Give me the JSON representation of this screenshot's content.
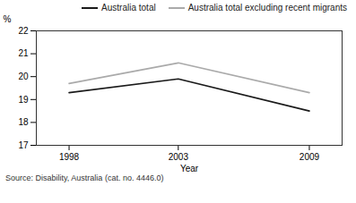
{
  "chart_data": {
    "type": "line",
    "x": [
      1998,
      2003,
      2009
    ],
    "series": [
      {
        "name": "Australia total",
        "color": "#1a1a1a",
        "values": [
          19.3,
          19.9,
          18.5
        ]
      },
      {
        "name": "Australia total excluding recent migrants",
        "color": "#aaaaaa",
        "values": [
          19.7,
          20.6,
          19.3
        ]
      }
    ],
    "xlabel": "Year",
    "ylabel": "%",
    "xlim": [
      1996.5,
      2010.5
    ],
    "xticks": [
      1998,
      2003,
      2009
    ],
    "ylim": [
      17,
      22
    ],
    "yticks": [
      17,
      18,
      19,
      20,
      21,
      22
    ],
    "grid": false,
    "legend": "upper right",
    "annotations": [
      "Source: Disability, Australia (cat. no. 4446.0)"
    ]
  }
}
